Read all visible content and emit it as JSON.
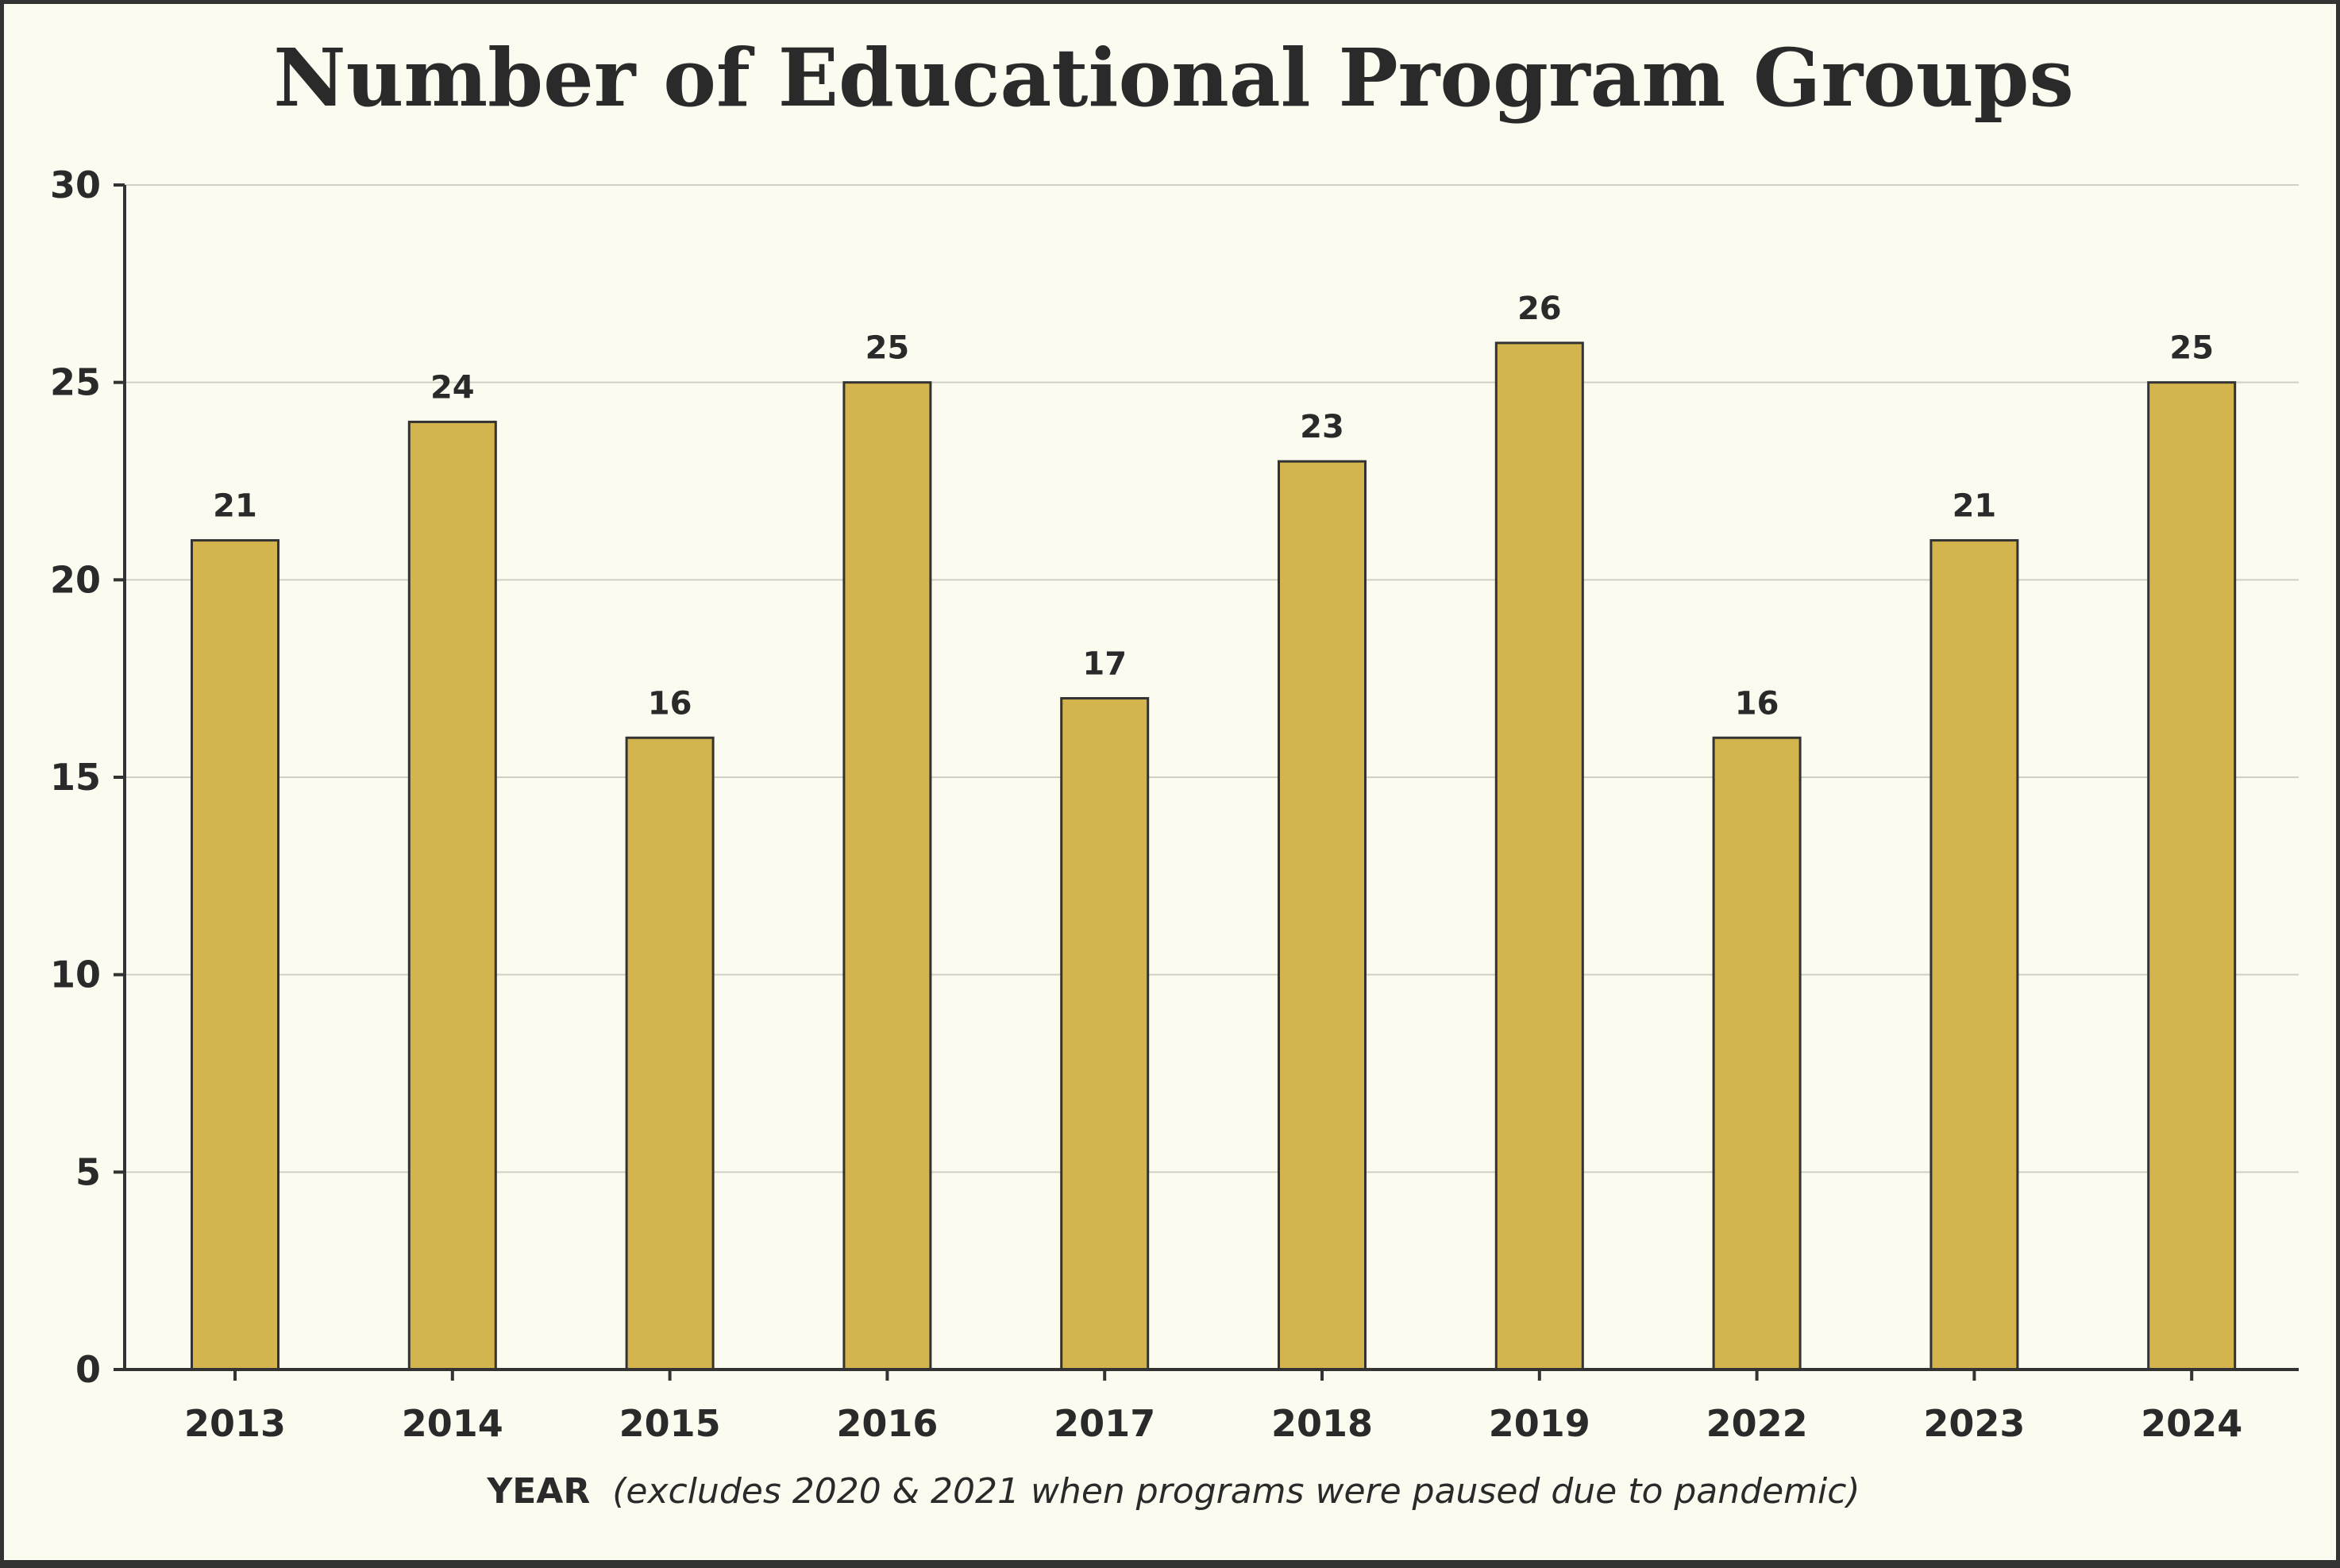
{
  "chart_data": {
    "type": "bar",
    "title": "Number of Educational Program Groups",
    "xlabel": "YEAR",
    "xlabel_note": "(excludes 2020 & 2021 when programs were paused due to pandemic)",
    "ylabel": "",
    "categories": [
      "2013",
      "2014",
      "2015",
      "2016",
      "2017",
      "2018",
      "2019",
      "2022",
      "2023",
      "2024"
    ],
    "values": [
      21,
      24,
      16,
      25,
      17,
      23,
      26,
      16,
      21,
      25
    ],
    "ylim": [
      0,
      30
    ],
    "yticks": [
      0,
      5,
      10,
      15,
      20,
      25,
      30
    ],
    "grid": true,
    "legend": "none",
    "bar_color": "#d4b44c",
    "bar_edge_color": "#333333",
    "grid_color": "#cfcfc4",
    "text_color": "#2a2a2a",
    "background_color": "#fcfbef"
  }
}
